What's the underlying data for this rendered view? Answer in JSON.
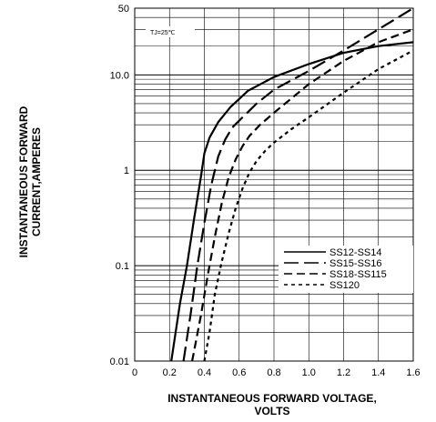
{
  "chart_data": {
    "type": "line",
    "title": "",
    "xlabel": "INSTANTANEOUS FORWARD VOLTAGE,\nVOLTS",
    "ylabel": "INSTANTANEOUS FORWARD\nCURRENT,AMPERES",
    "xlim": [
      0,
      1.6
    ],
    "ylim": [
      0.01,
      50
    ],
    "yscale": "log",
    "grid": true,
    "legend_position": "lower-right",
    "annotation": "TJ=25℃",
    "x_ticks": [
      "0",
      "0.2",
      "0.4",
      "0.6",
      "0.8",
      "1.0",
      "1.2",
      "1.4",
      "1.6"
    ],
    "y_ticks": [
      {
        "value": 0.01,
        "label": "0.01"
      },
      {
        "value": 0.1,
        "label": "0.1"
      },
      {
        "value": 1,
        "label": "1"
      },
      {
        "value": 10,
        "label": "10.0"
      },
      {
        "value": 50,
        "label": "50"
      }
    ],
    "series": [
      {
        "name": "SS12-SS14",
        "dash": "solid",
        "x": [
          0.21,
          0.26,
          0.3,
          0.34,
          0.38,
          0.4,
          0.43,
          0.48,
          0.55,
          0.65,
          0.8,
          1.0,
          1.2,
          1.4,
          1.6
        ],
        "y": [
          0.01,
          0.04,
          0.1,
          0.3,
          0.85,
          1.5,
          2.2,
          3.2,
          4.6,
          6.8,
          9.5,
          13,
          17,
          20,
          22
        ]
      },
      {
        "name": "SS15-SS16",
        "dash": "long",
        "x": [
          0.28,
          0.32,
          0.36,
          0.4,
          0.44,
          0.48,
          0.52,
          0.56,
          0.62,
          0.7,
          0.8,
          1.0,
          1.2,
          1.4,
          1.6
        ],
        "y": [
          0.01,
          0.03,
          0.1,
          0.28,
          0.7,
          1.4,
          2.1,
          2.8,
          3.6,
          5.0,
          7.0,
          11,
          18,
          30,
          50
        ]
      },
      {
        "name": "SS18-SS115",
        "dash": "medium",
        "x": [
          0.33,
          0.38,
          0.42,
          0.46,
          0.5,
          0.54,
          0.58,
          0.62,
          0.66,
          0.72,
          0.82,
          1.0,
          1.2,
          1.4,
          1.6
        ],
        "y": [
          0.01,
          0.03,
          0.08,
          0.2,
          0.45,
          0.85,
          1.3,
          1.8,
          2.3,
          3.0,
          4.3,
          8.0,
          14,
          22,
          30
        ]
      },
      {
        "name": "SS120",
        "dash": "short",
        "x": [
          0.4,
          0.43,
          0.46,
          0.5,
          0.54,
          0.58,
          0.62,
          0.66,
          0.7,
          0.75,
          0.8,
          0.9,
          1.0,
          1.2,
          1.4,
          1.6
        ],
        "y": [
          0.01,
          0.02,
          0.05,
          0.11,
          0.22,
          0.4,
          0.65,
          0.95,
          1.25,
          1.6,
          1.95,
          2.7,
          3.6,
          6.5,
          11.5,
          18
        ]
      }
    ]
  }
}
